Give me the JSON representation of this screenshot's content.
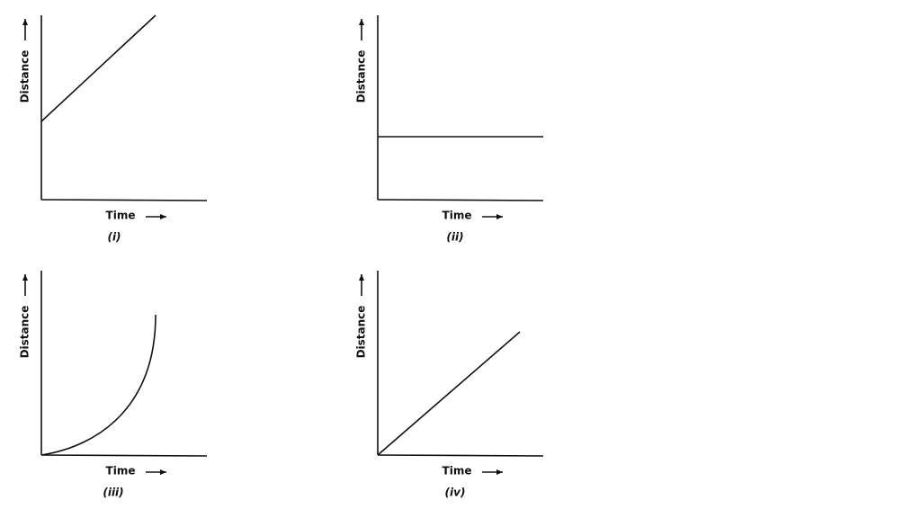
{
  "panels": [
    {
      "y_label": "Distance",
      "x_label": "Time",
      "caption": "(i)"
    },
    {
      "y_label": "Distance",
      "x_label": "Time",
      "caption": "(ii)"
    },
    {
      "y_label": "Distance",
      "x_label": "Time",
      "caption": "(iii)"
    },
    {
      "y_label": "Distance",
      "x_label": "Time",
      "caption": "(iv)"
    }
  ]
}
